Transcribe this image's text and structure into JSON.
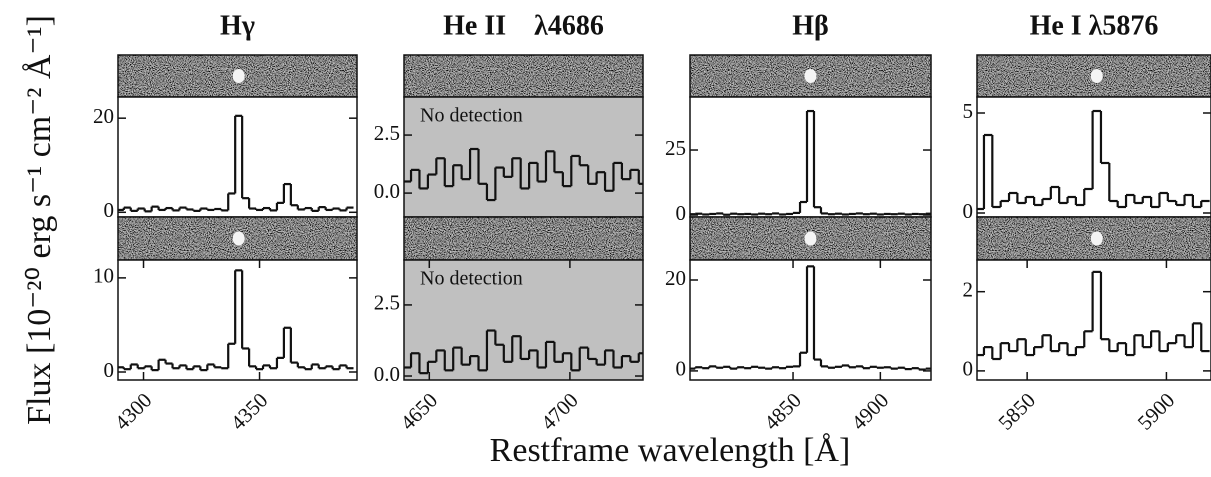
{
  "xlabel": "Restframe wavelength [Å]",
  "ylabel": "Flux [10⁻²⁰ erg s⁻¹ cm⁻² Å⁻¹]",
  "chart_data": [
    {
      "type": "line",
      "title": "Hγ",
      "step": true,
      "color": "#111111",
      "facecolor": "#ffffff",
      "x": [
        4290,
        4293,
        4296,
        4299,
        4302,
        4305,
        4308,
        4311,
        4314,
        4317,
        4320,
        4323,
        4326,
        4329,
        4332,
        4335,
        4338,
        4341,
        4344,
        4347,
        4350,
        4353,
        4356,
        4359,
        4362,
        4365,
        4368,
        4371,
        4374,
        4377,
        4380,
        4383,
        4386,
        4389
      ],
      "values": [
        0.5,
        1,
        0.3,
        0.8,
        0.2,
        1.2,
        0.5,
        0.9,
        0.4,
        1,
        0.6,
        0.3,
        0.8,
        0.5,
        0.7,
        0.4,
        4,
        20.5,
        3,
        0.8,
        0.5,
        0.9,
        0.4,
        2,
        6,
        1.5,
        0.6,
        0.9,
        0.3,
        1.1,
        0.5,
        0.8,
        0.4,
        1
      ],
      "xlim": [
        4289,
        4392
      ],
      "ylim": [
        -1,
        24.5
      ],
      "yticks": [
        0,
        20
      ]
    },
    {
      "type": "line",
      "title": "He II    λ4686",
      "step": true,
      "color": "#111111",
      "facecolor": "#c0c0c0",
      "annotation": "No detection",
      "x": [
        4642,
        4645,
        4648,
        4651,
        4654,
        4657,
        4660,
        4663,
        4666,
        4669,
        4672,
        4675,
        4678,
        4681,
        4684,
        4687,
        4690,
        4693,
        4696,
        4699,
        4702,
        4705,
        4708,
        4711,
        4714,
        4717,
        4720,
        4723,
        4726
      ],
      "values": [
        0.5,
        1,
        0.2,
        0.8,
        1.5,
        0.3,
        1.2,
        0.6,
        1.9,
        0.4,
        -0.3,
        1.1,
        0.7,
        1.5,
        0.2,
        1.3,
        0.5,
        1.8,
        0.9,
        0.3,
        1.6,
        1.2,
        0.4,
        0.9,
        0.1,
        1.3,
        0.6,
        1,
        0.4
      ],
      "xlim": [
        4641,
        4726
      ],
      "ylim": [
        -1.03,
        4.14
      ],
      "yticks": [
        {
          "value": 0,
          "label": "0.0"
        },
        2.5
      ]
    },
    {
      "type": "line",
      "title": "Hβ",
      "step": true,
      "color": "#111111",
      "facecolor": "#ffffff",
      "x": [
        4792,
        4796,
        4800,
        4804,
        4808,
        4812,
        4816,
        4820,
        4824,
        4828,
        4832,
        4836,
        4840,
        4844,
        4848,
        4852,
        4856,
        4860,
        4864,
        4868,
        4872,
        4876,
        4880,
        4884,
        4888,
        4892,
        4896,
        4900,
        4904,
        4908,
        4912,
        4916,
        4920,
        4924,
        4928
      ],
      "values": [
        0.3,
        0.5,
        0.2,
        0.4,
        0.6,
        0.1,
        0.5,
        0.3,
        0.4,
        0.2,
        0.5,
        0.3,
        0.6,
        0.2,
        0.4,
        0.8,
        5,
        40,
        3,
        0.6,
        0.3,
        0.5,
        0.2,
        0.4,
        0.6,
        0.3,
        0.5,
        0.2,
        0.4,
        0.3,
        0.5,
        0.2,
        0.4,
        0.3,
        0.5
      ],
      "xlim": [
        4791,
        4929
      ],
      "ylim": [
        -0.77,
        45.4
      ],
      "yticks": [
        0,
        25
      ]
    },
    {
      "type": "line",
      "title": "He I λ5876",
      "step": true,
      "color": "#111111",
      "facecolor": "#ffffff",
      "x": [
        5833,
        5836,
        5839,
        5842,
        5845,
        5848,
        5851,
        5854,
        5857,
        5860,
        5863,
        5866,
        5869,
        5872,
        5875,
        5878,
        5881,
        5884,
        5887,
        5890,
        5893,
        5896,
        5899,
        5902,
        5905,
        5908,
        5911,
        5914
      ],
      "values": [
        0.2,
        3.9,
        0.3,
        0.6,
        1,
        0.5,
        0.8,
        0.4,
        0.7,
        1.3,
        0.5,
        0.8,
        0.4,
        1.2,
        5.1,
        2.5,
        0.6,
        0.3,
        0.9,
        0.5,
        0.8,
        0.3,
        1,
        0.6,
        0.4,
        0.9,
        0.3,
        0.6
      ],
      "xlim": [
        5832,
        5916
      ],
      "ylim": [
        -0.2,
        5.8
      ],
      "yticks": [
        0,
        5
      ]
    },
    {
      "type": "line",
      "step": true,
      "color": "#111111",
      "facecolor": "#ffffff",
      "x": [
        4290,
        4293,
        4296,
        4299,
        4302,
        4305,
        4308,
        4311,
        4314,
        4317,
        4320,
        4323,
        4326,
        4329,
        4332,
        4335,
        4338,
        4341,
        4344,
        4347,
        4350,
        4353,
        4356,
        4359,
        4362,
        4365,
        4368,
        4371,
        4374,
        4377,
        4380,
        4383,
        4386,
        4389
      ],
      "values": [
        0.5,
        0.3,
        0.8,
        0.4,
        0.6,
        0.2,
        1.3,
        0.9,
        0.4,
        0.7,
        0.3,
        0.6,
        0.2,
        0.8,
        0.5,
        0.4,
        3,
        10.8,
        2.5,
        0.6,
        0.3,
        0.7,
        0.4,
        1.5,
        4.7,
        1,
        0.5,
        0.3,
        0.8,
        0.4,
        0.6,
        0.3,
        0.7,
        0.4
      ],
      "xlim": [
        4289,
        4392
      ],
      "xticks": [
        4300,
        4350
      ],
      "ylim": [
        -0.85,
        11.9
      ],
      "yticks": [
        0,
        10
      ]
    },
    {
      "type": "line",
      "step": true,
      "color": "#111111",
      "facecolor": "#c0c0c0",
      "annotation": "No detection",
      "x": [
        4642,
        4645,
        4648,
        4651,
        4654,
        4657,
        4660,
        4663,
        4666,
        4669,
        4672,
        4675,
        4678,
        4681,
        4684,
        4687,
        4690,
        4693,
        4696,
        4699,
        4702,
        4705,
        4708,
        4711,
        4714,
        4717,
        4720,
        4723,
        4726
      ],
      "values": [
        0.3,
        0.8,
        0.1,
        0.5,
        0.9,
        0.2,
        1,
        0.4,
        0.7,
        0.2,
        1.6,
        1.1,
        0.5,
        1.4,
        0.6,
        0.9,
        0.3,
        1.2,
        0.5,
        0.8,
        0.2,
        1,
        0.6,
        0.4,
        0.9,
        0.3,
        0.7,
        0.5,
        0.8
      ],
      "xlim": [
        4641,
        4726
      ],
      "xticks": [
        4650,
        4700
      ],
      "ylim": [
        -0.14,
        4.08
      ],
      "yticks": [
        {
          "value": 0,
          "label": "0.0"
        },
        2.5
      ]
    },
    {
      "type": "line",
      "step": true,
      "color": "#111111",
      "facecolor": "#ffffff",
      "x": [
        4792,
        4796,
        4800,
        4804,
        4808,
        4812,
        4816,
        4820,
        4824,
        4828,
        4832,
        4836,
        4840,
        4844,
        4848,
        4852,
        4856,
        4860,
        4864,
        4868,
        4872,
        4876,
        4880,
        4884,
        4888,
        4892,
        4896,
        4900,
        4904,
        4908,
        4912,
        4916,
        4920,
        4924,
        4928
      ],
      "values": [
        0.5,
        0.8,
        0.6,
        1,
        0.7,
        0.9,
        0.5,
        0.8,
        0.6,
        0.9,
        0.7,
        0.5,
        0.8,
        0.6,
        0.9,
        1,
        4,
        23,
        2.5,
        1,
        0.7,
        0.9,
        1.2,
        0.8,
        1,
        0.6,
        0.9,
        0.7,
        0.8,
        0.5,
        0.7,
        0.4,
        0.6,
        0.3,
        0.5
      ],
      "xlim": [
        4791,
        4929
      ],
      "xticks": [
        4850,
        4900
      ],
      "ylim": [
        -2,
        24.4
      ],
      "yticks": [
        0,
        20
      ]
    },
    {
      "type": "line",
      "step": true,
      "color": "#111111",
      "facecolor": "#ffffff",
      "x": [
        5833,
        5836,
        5839,
        5842,
        5845,
        5848,
        5851,
        5854,
        5857,
        5860,
        5863,
        5866,
        5869,
        5872,
        5875,
        5878,
        5881,
        5884,
        5887,
        5890,
        5893,
        5896,
        5899,
        5902,
        5905,
        5908,
        5911,
        5914
      ],
      "values": [
        0.4,
        0.6,
        0.3,
        0.7,
        0.5,
        0.8,
        0.4,
        0.6,
        0.9,
        0.5,
        0.7,
        0.4,
        0.6,
        1,
        2.5,
        0.8,
        0.5,
        0.7,
        0.4,
        0.9,
        0.6,
        1,
        0.5,
        0.7,
        0.9,
        0.6,
        1.2,
        0.5
      ],
      "xlim": [
        5832,
        5916
      ],
      "xticks": [
        5850,
        5900
      ],
      "ylim": [
        -0.23,
        2.8
      ],
      "yticks": [
        0,
        2
      ]
    }
  ]
}
